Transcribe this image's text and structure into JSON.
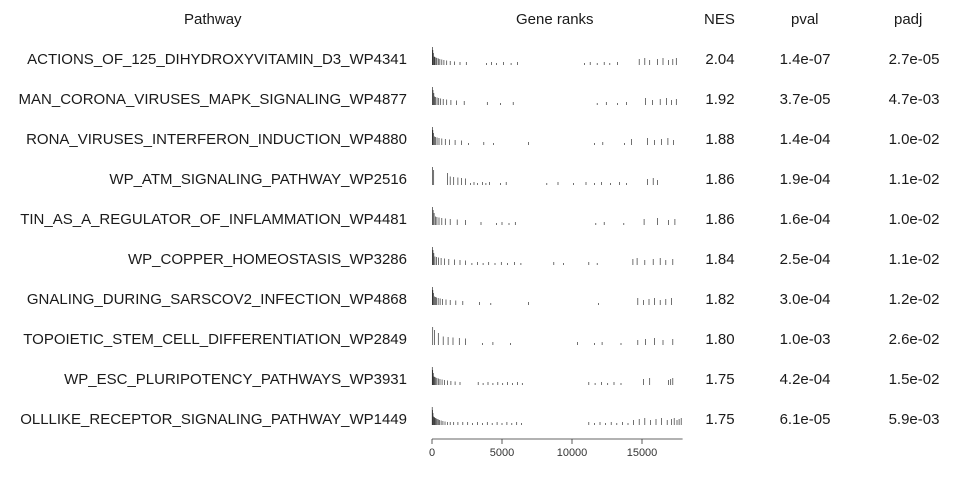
{
  "chart_data": {
    "type": "table",
    "headers": {
      "pathway": "Pathway",
      "gene_ranks": "Gene ranks",
      "nes": "NES",
      "pval": "pval",
      "padj": "padj"
    },
    "x_axis": {
      "ticks": [
        "0",
        "5000",
        "10000",
        "15000"
      ],
      "tick_values": [
        0,
        5000,
        10000,
        15000
      ],
      "range": [
        0,
        18000
      ]
    },
    "rows": [
      {
        "pathway": "ACTIONS_OF_125_DIHYDROXYVITAMIN_D3_WP4341",
        "nes": "2.04",
        "pval": "1.4e-07",
        "padj": "2.7e-05",
        "ranks": [
          25,
          60,
          100,
          150,
          200,
          280,
          350,
          450,
          560,
          700,
          850,
          1050,
          1300,
          1600,
          2000,
          2450,
          3900,
          4250,
          4600,
          5100,
          5650,
          6100,
          10900,
          11300,
          11800,
          12300,
          12700,
          13250,
          14800,
          15200,
          15550,
          16100,
          16500,
          16900,
          17200,
          17450
        ]
      },
      {
        "pathway": "MAN_CORONA_VIRUSES_MAPK_SIGNALING_WP4877",
        "nes": "1.92",
        "pval": "3.7e-05",
        "padj": "4.7e-03",
        "ranks": [
          30,
          70,
          130,
          190,
          260,
          360,
          480,
          620,
          800,
          1050,
          1350,
          1750,
          2300,
          3950,
          4900,
          5800,
          11800,
          12450,
          13250,
          13900,
          15250,
          15750,
          16300,
          16750,
          17100,
          17450
        ]
      },
      {
        "pathway": "RONA_VIRUSES_INTERFERON_INDUCTION_WP4880",
        "nes": "1.88",
        "pval": "1.4e-04",
        "padj": "1.0e-02",
        "ranks": [
          25,
          60,
          110,
          180,
          260,
          360,
          500,
          700,
          950,
          1250,
          1650,
          2100,
          2600,
          3700,
          4400,
          6900,
          11600,
          12200,
          13750,
          14250,
          15400,
          15900,
          16400,
          16850,
          17250
        ]
      },
      {
        "pathway": "WP_ATM_SIGNALING_PATHWAY_WP2516",
        "nes": "1.86",
        "pval": "1.9e-04",
        "padj": "1.1e-02",
        "ranks": [
          40,
          120,
          1100,
          1300,
          1550,
          1850,
          2100,
          2400,
          2750,
          3000,
          3250,
          3600,
          3850,
          4100,
          4900,
          5300,
          8200,
          9000,
          10100,
          11000,
          11600,
          12100,
          12750,
          13400,
          13900,
          15400,
          15800,
          16100
        ]
      },
      {
        "pathway": "TIN_AS_A_REGULATOR_OF_INFLAMMATION_WP4481",
        "nes": "1.86",
        "pval": "1.6e-04",
        "padj": "1.0e-02",
        "ranks": [
          30,
          80,
          150,
          240,
          350,
          500,
          700,
          950,
          1300,
          1800,
          2400,
          3500,
          4600,
          5000,
          5500,
          5950,
          11700,
          12300,
          13700,
          15150,
          16100,
          16900,
          17350
        ]
      },
      {
        "pathway": "WP_COPPER_HOMEOSTASIS_WP3286",
        "nes": "1.84",
        "pval": "2.5e-04",
        "padj": "1.1e-02",
        "ranks": [
          25,
          70,
          130,
          210,
          320,
          460,
          650,
          900,
          1200,
          1600,
          2000,
          2400,
          2850,
          3250,
          3650,
          4050,
          4500,
          4950,
          5400,
          5900,
          6350,
          8700,
          9400,
          11200,
          11800,
          14350,
          14650,
          15200,
          15800,
          16300,
          16700,
          17200
        ]
      },
      {
        "pathway": "GNALING_DURING_SARSCOV2_INFECTION_WP4868",
        "nes": "1.82",
        "pval": "3.0e-04",
        "padj": "1.2e-02",
        "ranks": [
          25,
          60,
          110,
          170,
          240,
          330,
          440,
          580,
          760,
          1000,
          1300,
          1700,
          2200,
          3400,
          4200,
          6900,
          11900,
          14700,
          15100,
          15500,
          15900,
          16300,
          16700,
          17100
        ]
      },
      {
        "pathway": "TOPOIETIC_STEM_CELL_DIFFERENTIATION_WP2849",
        "nes": "1.80",
        "pval": "1.0e-03",
        "padj": "2.6e-02",
        "ranks": [
          50,
          180,
          450,
          800,
          1150,
          1500,
          1950,
          2400,
          3600,
          4350,
          5600,
          10400,
          11600,
          12150,
          13500,
          14700,
          15250,
          15900,
          16500,
          17200
        ]
      },
      {
        "pathway": "WP_ESC_PLURIPOTENCY_PATHWAYS_WP3931",
        "nes": "1.75",
        "pval": "4.2e-04",
        "padj": "1.5e-02",
        "ranks": [
          20,
          50,
          90,
          140,
          200,
          270,
          350,
          450,
          570,
          720,
          900,
          1100,
          1350,
          1650,
          2000,
          3300,
          3650,
          4000,
          4350,
          4700,
          5050,
          5400,
          5750,
          6100,
          6450,
          11200,
          11650,
          12100,
          12550,
          13000,
          13500,
          15100,
          15550,
          16900,
          17050,
          17200
        ]
      },
      {
        "pathway": "OLLLIKE_RECEPTOR_SIGNALING_PATHWAY_WP1449",
        "nes": "1.75",
        "pval": "6.1e-05",
        "padj": "5.9e-03",
        "ranks": [
          15,
          40,
          70,
          105,
          145,
          190,
          240,
          300,
          370,
          450,
          540,
          650,
          780,
          930,
          1100,
          1300,
          1550,
          1850,
          2200,
          2550,
          2900,
          3250,
          3600,
          3950,
          4300,
          4650,
          5000,
          5350,
          5700,
          6050,
          6400,
          11200,
          11600,
          12000,
          12400,
          12800,
          13200,
          13600,
          14000,
          14400,
          14800,
          15200,
          15600,
          16000,
          16400,
          16800,
          17100,
          17300,
          17500,
          17650,
          17800
        ]
      }
    ]
  }
}
